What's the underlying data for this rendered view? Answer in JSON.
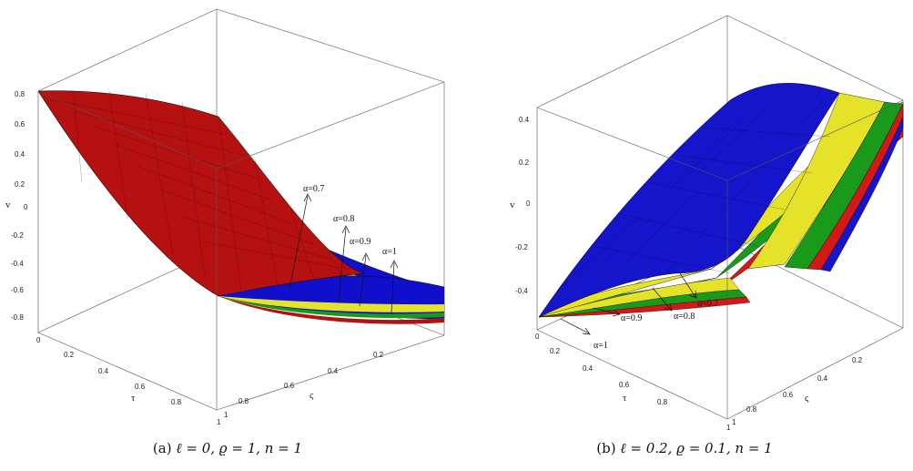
{
  "chart_data": [
    {
      "type": "surface",
      "subfigure": "(a)",
      "caption": {
        "label": "(a)",
        "math": "ℓ = 0, ϱ = 1, n = 1"
      },
      "axes": {
        "x_label": "τ",
        "y_label": "ς",
        "z_label": "v",
        "x_ticks": [
          "0",
          "0.2",
          "0.4",
          "0.6",
          "0.8",
          "1"
        ],
        "y_ticks": [
          "0.2",
          "0.4",
          "0.6",
          "0.8",
          "1"
        ],
        "z_ticks": [
          "0.8",
          "0.6",
          "0.4",
          "0.2",
          "0",
          "-0.2",
          "-0.4",
          "-0.6",
          "-0.8"
        ],
        "x_range": [
          0,
          1
        ],
        "y_range": [
          0,
          1
        ],
        "z_range": [
          -0.85,
          0.85
        ]
      },
      "surface_values": [
        {
          "alpha_label": "α=1",
          "color": "#1010cc",
          "v_at_tau0_varsigma0": 0.85,
          "v_at_tau1_varsigma0": -0.65,
          "v_at_tau1_varsigma1": -0.68
        },
        {
          "alpha_label": "α=0.9",
          "color": "#e6e22a",
          "v_at_tau0_varsigma0": 0.85,
          "v_at_tau1_varsigma0": -0.65,
          "v_at_tau1_varsigma1": -0.74
        },
        {
          "alpha_label": "α=0.8",
          "color": "#1a9a1a",
          "v_at_tau0_varsigma0": 0.85,
          "v_at_tau1_varsigma0": -0.65,
          "v_at_tau1_varsigma1": -0.78
        },
        {
          "alpha_label": "α=0.7",
          "color": "#b51111",
          "v_at_tau0_varsigma0": 0.85,
          "v_at_tau1_varsigma0": -0.65,
          "v_at_tau1_varsigma1": -0.82
        }
      ]
    },
    {
      "type": "surface",
      "subfigure": "(b)",
      "caption": {
        "label": "(b)",
        "math": "ℓ = 0.2, ϱ = 0.1, n = 1"
      },
      "axes": {
        "x_label": "τ",
        "y_label": "ς",
        "z_label": "v",
        "x_ticks": [
          "0",
          "0.2",
          "0.4",
          "0.6",
          "0.8",
          "1"
        ],
        "y_ticks": [
          "0.2",
          "0.4",
          "0.6",
          "0.8",
          "1"
        ],
        "z_ticks": [
          "0.4",
          "0.2",
          "0",
          "-0.2",
          "-0.4"
        ],
        "x_range": [
          0,
          1
        ],
        "y_range": [
          0,
          1
        ],
        "z_range": [
          -0.5,
          0.5
        ]
      },
      "surface_values": [
        {
          "alpha_label": "α=1",
          "color": "#1010cc",
          "v_at_tau0_varsigma0": -0.52,
          "v_at_tau1_varsigma0": 0.36,
          "v_at_tau1_varsigma1": 0.45
        },
        {
          "alpha_label": "α=0.9",
          "color": "#e6e22a",
          "v_at_tau0_varsigma0": -0.52,
          "v_at_tau1_varsigma0": 0.36,
          "v_at_tau1_varsigma1": 0.42
        },
        {
          "alpha_label": "α=0.8",
          "color": "#1a9a1a",
          "v_at_tau0_varsigma0": -0.52,
          "v_at_tau1_varsigma0": 0.36,
          "v_at_tau1_varsigma1": 0.39
        },
        {
          "alpha_label": "α=0.7",
          "color": "#d41818",
          "v_at_tau0_varsigma0": -0.52,
          "v_at_tau1_varsigma0": 0.36,
          "v_at_tau1_varsigma1": 0.36
        }
      ]
    }
  ]
}
